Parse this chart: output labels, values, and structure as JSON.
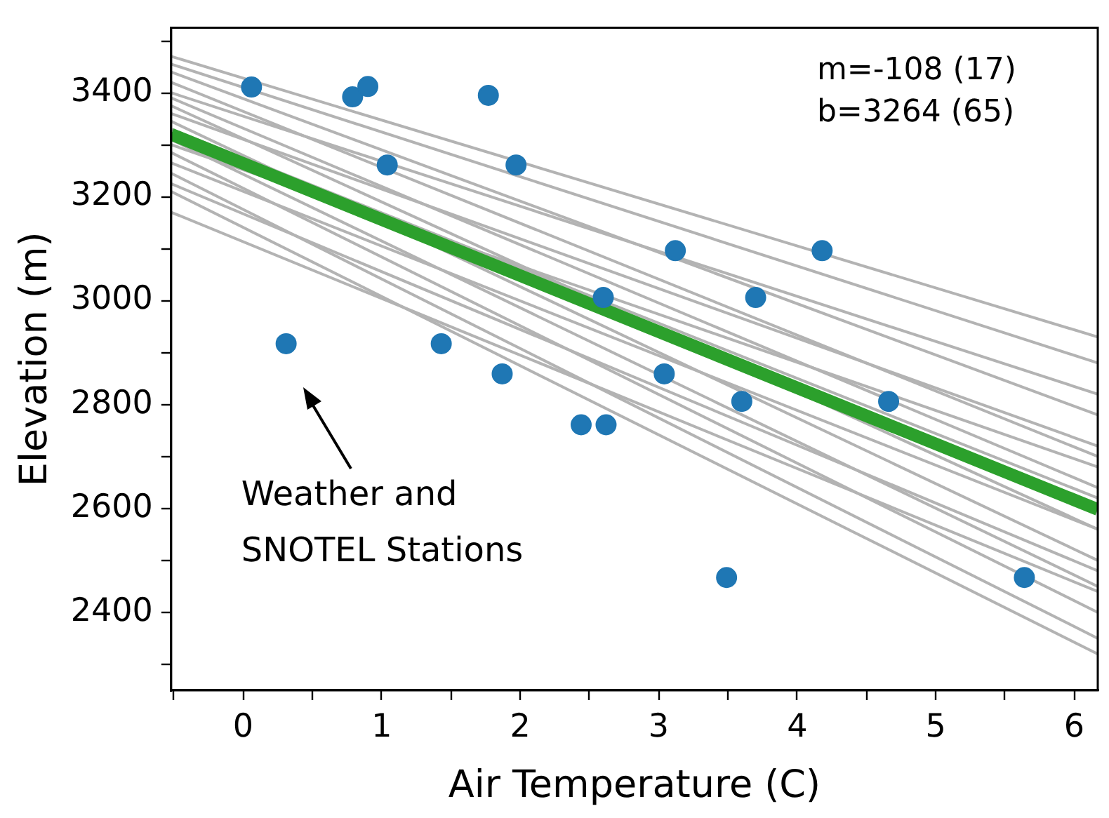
{
  "chart_data": {
    "type": "scatter",
    "xlabel": "Air Temperature (C)",
    "ylabel": "Elevation (m)",
    "xlim": [
      -0.52,
      6.17
    ],
    "ylim": [
      2250,
      3525
    ],
    "xticks": [
      {
        "value": -0.5,
        "label": null
      },
      0,
      {
        "value": 0.5,
        "label": null
      },
      1,
      {
        "value": 1.5,
        "label": null
      },
      2,
      {
        "value": 2.5,
        "label": null
      },
      3,
      {
        "value": 3.5,
        "label": null
      },
      4,
      {
        "value": 4.5,
        "label": null
      },
      5,
      {
        "value": 5.5,
        "label": null
      },
      6
    ],
    "yticks": [
      {
        "value": 2300,
        "label": null
      },
      2400,
      {
        "value": 2500,
        "label": null
      },
      2600,
      {
        "value": 2700,
        "label": null
      },
      2800,
      {
        "value": 2900,
        "label": null
      },
      3000,
      {
        "value": 3100,
        "label": null
      },
      3200,
      {
        "value": 3300,
        "label": null
      },
      3400,
      {
        "value": 3500,
        "label": null
      }
    ],
    "grid": false,
    "legend": false,
    "annotations": [
      "m=-108 (17)",
      "b=3264 (65)",
      "Weather and\nSNOTEL Stations"
    ],
    "series": [
      {
        "type": "line",
        "color": "#b3b3b3",
        "x": [
          -0.52,
          6.17
        ],
        "values": [
          3470,
          2930
        ]
      },
      {
        "type": "line",
        "color": "#b3b3b3",
        "x": [
          -0.52,
          6.17
        ],
        "values": [
          3455,
          2880
        ]
      },
      {
        "type": "line",
        "color": "#b3b3b3",
        "x": [
          -0.52,
          6.17
        ],
        "values": [
          3440,
          2780
        ]
      },
      {
        "type": "line",
        "color": "#b3b3b3",
        "x": [
          -0.52,
          6.17
        ],
        "values": [
          3420,
          2700
        ]
      },
      {
        "type": "line",
        "color": "#b3b3b3",
        "x": [
          -0.52,
          6.17
        ],
        "values": [
          3400,
          2820
        ]
      },
      {
        "type": "line",
        "color": "#b3b3b3",
        "x": [
          -0.52,
          6.17
        ],
        "values": [
          3390,
          2640
        ]
      },
      {
        "type": "line",
        "color": "#b3b3b3",
        "x": [
          -0.52,
          6.17
        ],
        "values": [
          3375,
          2560
        ]
      },
      {
        "type": "line",
        "color": "#b3b3b3",
        "x": [
          -0.52,
          6.17
        ],
        "values": [
          3360,
          2720
        ]
      },
      {
        "type": "line",
        "color": "#b3b3b3",
        "x": [
          -0.52,
          6.17
        ],
        "values": [
          3345,
          2500
        ]
      },
      {
        "type": "line",
        "color": "#b3b3b3",
        "x": [
          -0.52,
          6.17
        ],
        "values": [
          3330,
          2620
        ]
      },
      {
        "type": "line",
        "color": "#b3b3b3",
        "x": [
          -0.52,
          6.17
        ],
        "values": [
          3310,
          2450
        ]
      },
      {
        "type": "line",
        "color": "#b3b3b3",
        "x": [
          -0.52,
          6.17
        ],
        "values": [
          3300,
          2680
        ]
      },
      {
        "type": "line",
        "color": "#b3b3b3",
        "x": [
          -0.52,
          6.17
        ],
        "values": [
          3285,
          2400
        ]
      },
      {
        "type": "line",
        "color": "#b3b3b3",
        "x": [
          -0.52,
          6.17
        ],
        "values": [
          3265,
          2560
        ]
      },
      {
        "type": "line",
        "color": "#b3b3b3",
        "x": [
          -0.52,
          6.17
        ],
        "values": [
          3245,
          2350
        ]
      },
      {
        "type": "line",
        "color": "#b3b3b3",
        "x": [
          -0.52,
          6.17
        ],
        "values": [
          3225,
          2480
        ]
      },
      {
        "type": "line",
        "color": "#b3b3b3",
        "x": [
          -0.52,
          6.17
        ],
        "values": [
          3210,
          2320
        ]
      },
      {
        "type": "line",
        "color": "#b3b3b3",
        "x": [
          -0.52,
          6.17
        ],
        "values": [
          3170,
          2440
        ]
      },
      {
        "type": "line",
        "color": "#2ca02c",
        "x": [
          -0.52,
          6.17
        ],
        "values": [
          3320,
          2598
        ]
      },
      {
        "type": "scatter",
        "color": "#1f77b4",
        "marker": "circle",
        "x": [
          0.06,
          0.79,
          0.9,
          1.77,
          1.04,
          1.97,
          0.31,
          1.43,
          1.87,
          2.6,
          3.12,
          4.18,
          3.7,
          3.04,
          3.6,
          4.66,
          2.44,
          2.62,
          3.49,
          5.64
        ],
        "values": [
          3411,
          3392,
          3412,
          3395,
          3261,
          3261,
          2917,
          2917,
          2859,
          3006,
          3096,
          3096,
          3006,
          2859,
          2806,
          2806,
          2761,
          2761,
          2467,
          2467
        ]
      }
    ]
  }
}
